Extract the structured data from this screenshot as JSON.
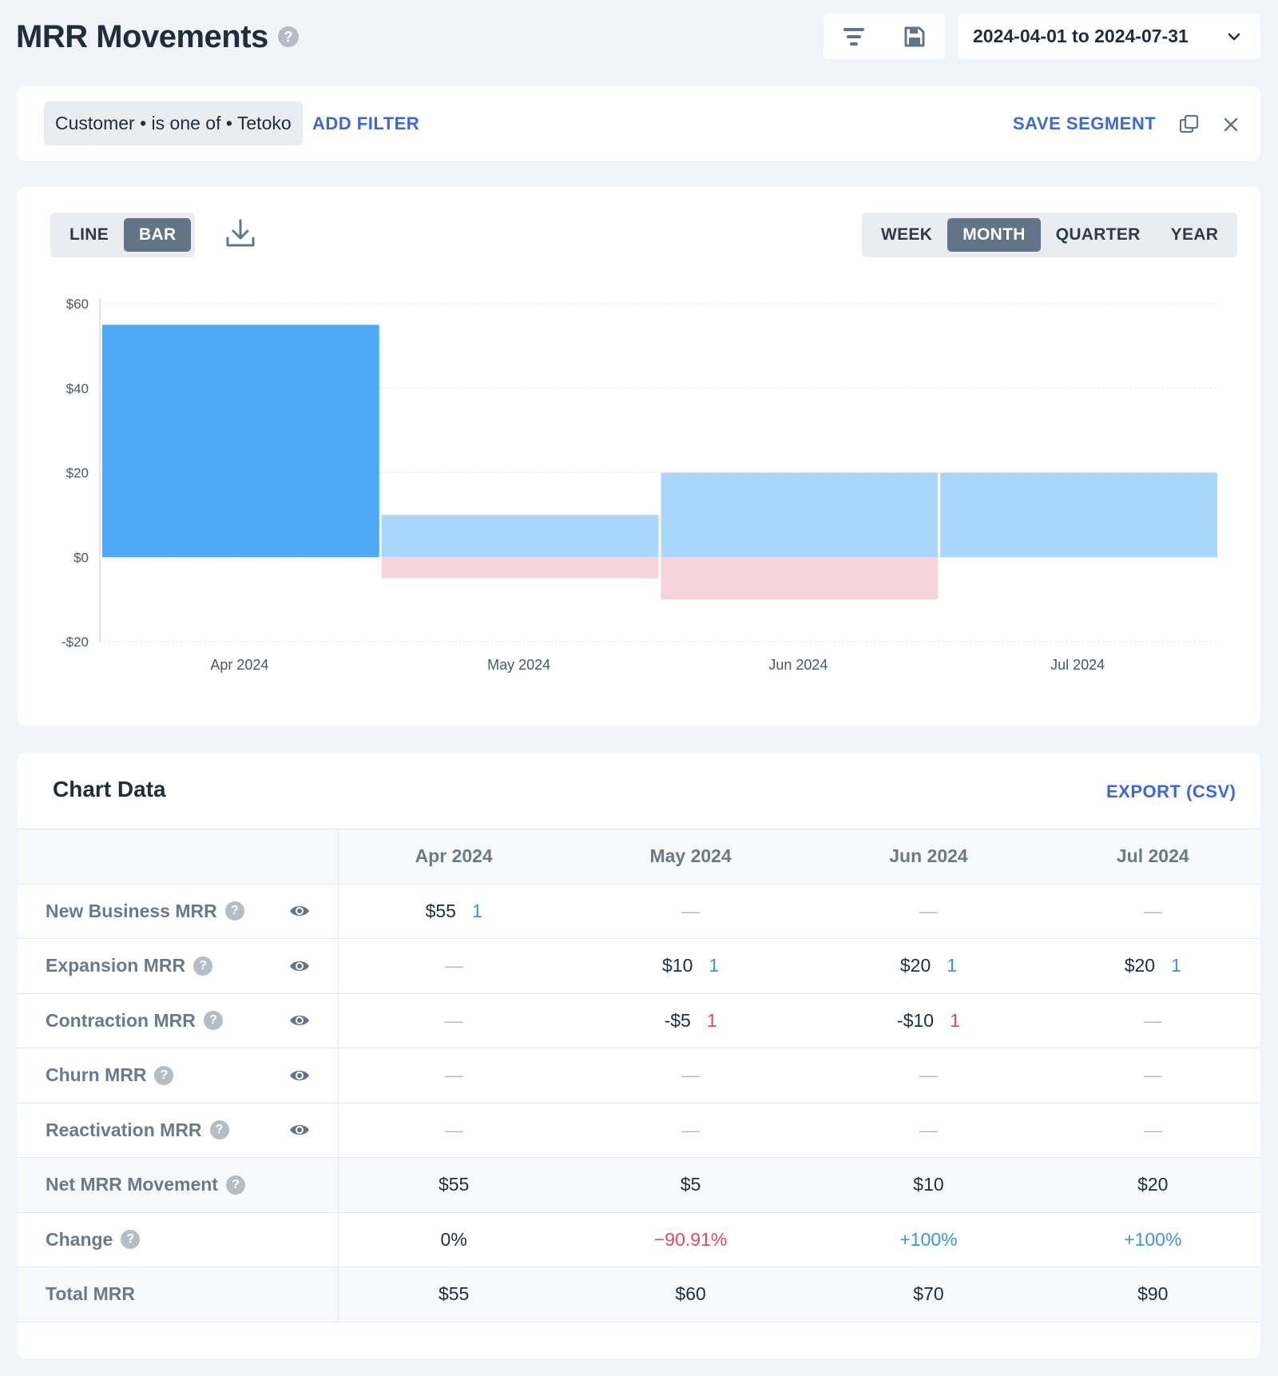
{
  "header": {
    "title": "MRR Movements",
    "date_range": "2024-04-01 to 2024-07-31"
  },
  "filter": {
    "chip": "Customer • is one of • Tetoko",
    "add_filter": "ADD FILTER",
    "save_segment": "SAVE SEGMENT"
  },
  "chart_controls": {
    "types": [
      "LINE",
      "BAR"
    ],
    "active_type": "BAR",
    "periods": [
      "WEEK",
      "MONTH",
      "QUARTER",
      "YEAR"
    ],
    "active_period": "MONTH"
  },
  "chart_data": {
    "type": "bar",
    "categories": [
      "Apr 2024",
      "May 2024",
      "Jun 2024",
      "Jul 2024"
    ],
    "series": [
      {
        "values": [
          55,
          0,
          0,
          0
        ],
        "color": "#4da9f5"
      },
      {
        "values": [
          0,
          10,
          20,
          20
        ],
        "color": "#a9d7fb"
      },
      {
        "values": [
          0,
          -5,
          -10,
          0
        ],
        "color": "#f7d3dc"
      }
    ],
    "ylim": [
      -20,
      60
    ],
    "yticks": [
      60,
      40,
      20,
      0,
      -20
    ],
    "ytick_labels": [
      "$60",
      "$40",
      "$20",
      "$0",
      "-$20"
    ],
    "stacked": true,
    "grid": true
  },
  "table": {
    "title": "Chart Data",
    "export_label": "EXPORT (CSV)",
    "columns": [
      "Apr 2024",
      "May 2024",
      "Jun 2024",
      "Jul 2024"
    ],
    "dash": "—",
    "rows": [
      {
        "label": "New Business MRR",
        "help": true,
        "eye": true,
        "cells": [
          {
            "v": "$55",
            "c": "1",
            "t": "pos"
          },
          {
            "v": "—"
          },
          {
            "v": "—"
          },
          {
            "v": "—"
          }
        ]
      },
      {
        "label": "Expansion MRR",
        "help": true,
        "eye": true,
        "cells": [
          {
            "v": "—"
          },
          {
            "v": "$10",
            "c": "1",
            "t": "pos"
          },
          {
            "v": "$20",
            "c": "1",
            "t": "pos"
          },
          {
            "v": "$20",
            "c": "1",
            "t": "pos"
          }
        ]
      },
      {
        "label": "Contraction MRR",
        "help": true,
        "eye": true,
        "cells": [
          {
            "v": "—"
          },
          {
            "v": "-$5",
            "c": "1",
            "t": "neg"
          },
          {
            "v": "-$10",
            "c": "1",
            "t": "neg"
          },
          {
            "v": "—"
          }
        ]
      },
      {
        "label": "Churn MRR",
        "help": true,
        "eye": true,
        "cells": [
          {
            "v": "—"
          },
          {
            "v": "—"
          },
          {
            "v": "—"
          },
          {
            "v": "—"
          }
        ]
      },
      {
        "label": "Reactivation MRR",
        "help": true,
        "eye": true,
        "cells": [
          {
            "v": "—"
          },
          {
            "v": "—"
          },
          {
            "v": "—"
          },
          {
            "v": "—"
          }
        ]
      },
      {
        "label": "Net MRR Movement",
        "help": true,
        "eye": false,
        "shade": true,
        "cells": [
          {
            "v": "$55"
          },
          {
            "v": "$5"
          },
          {
            "v": "$10"
          },
          {
            "v": "$20"
          }
        ]
      },
      {
        "label": "Change",
        "help": true,
        "eye": false,
        "shade": false,
        "cells": [
          {
            "v": "0%"
          },
          {
            "v": "−90.91%",
            "s": "neg"
          },
          {
            "v": "+100%",
            "s": "pos"
          },
          {
            "v": "+100%",
            "s": "pos"
          }
        ]
      },
      {
        "label": "Total MRR",
        "help": false,
        "eye": false,
        "shade": true,
        "cells": [
          {
            "v": "$55"
          },
          {
            "v": "$60"
          },
          {
            "v": "$70"
          },
          {
            "v": "$90"
          }
        ]
      }
    ]
  }
}
